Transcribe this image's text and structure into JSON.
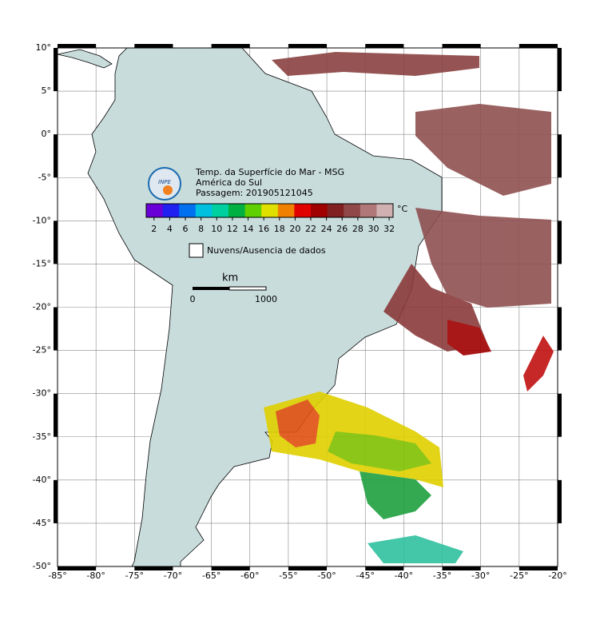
{
  "map": {
    "title_lines": [
      "Temp. da Superfície do Mar - MSG",
      "América do Sul",
      "Passagem: 201905121045"
    ],
    "logo_text": "INPE",
    "xlim": [
      -85,
      -20
    ],
    "ylim": [
      -50,
      10
    ],
    "xticks": [
      {
        "value": -85,
        "label": "-85°"
      },
      {
        "value": -80,
        "label": "-80°"
      },
      {
        "value": -75,
        "label": "-75°"
      },
      {
        "value": -70,
        "label": "-70°"
      },
      {
        "value": -65,
        "label": "-65°"
      },
      {
        "value": -60,
        "label": "-60°"
      },
      {
        "value": -55,
        "label": "-55°"
      },
      {
        "value": -50,
        "label": "-50°"
      },
      {
        "value": -45,
        "label": "-45°"
      },
      {
        "value": -40,
        "label": "-40°"
      },
      {
        "value": -35,
        "label": "-35°"
      },
      {
        "value": -30,
        "label": "-30°"
      },
      {
        "value": -25,
        "label": "-25°"
      },
      {
        "value": -20,
        "label": "-20°"
      }
    ],
    "yticks": [
      {
        "value": 10,
        "label": "10°"
      },
      {
        "value": 5,
        "label": "5°"
      },
      {
        "value": 0,
        "label": "0°"
      },
      {
        "value": -5,
        "label": "-5°"
      },
      {
        "value": -10,
        "label": "-10°"
      },
      {
        "value": -15,
        "label": "-15°"
      },
      {
        "value": -20,
        "label": "-20°"
      },
      {
        "value": -25,
        "label": "-25°"
      },
      {
        "value": -30,
        "label": "-30°"
      },
      {
        "value": -35,
        "label": "-35°"
      },
      {
        "value": -40,
        "label": "-40°"
      },
      {
        "value": -45,
        "label": "-45°"
      },
      {
        "value": -50,
        "label": "-50°"
      }
    ],
    "grid": true,
    "colorbar": {
      "unit": "°C",
      "range": [
        1,
        32.5
      ],
      "ticks": [
        2,
        4,
        6,
        8,
        10,
        12,
        14,
        16,
        18,
        20,
        22,
        24,
        26,
        28,
        30,
        32
      ],
      "colors": [
        "#6a00d8",
        "#2020f0",
        "#0070f0",
        "#00c0e0",
        "#00d0a0",
        "#00b040",
        "#60d000",
        "#e0e000",
        "#f08000",
        "#e00000",
        "#a00000",
        "#802020",
        "#904848",
        "#b07878",
        "#d0b0b0"
      ]
    },
    "legend": "Nuvens/Ausencia de dados",
    "scale_bar": {
      "unit": "km",
      "labels": [
        "0",
        "1000"
      ]
    }
  }
}
